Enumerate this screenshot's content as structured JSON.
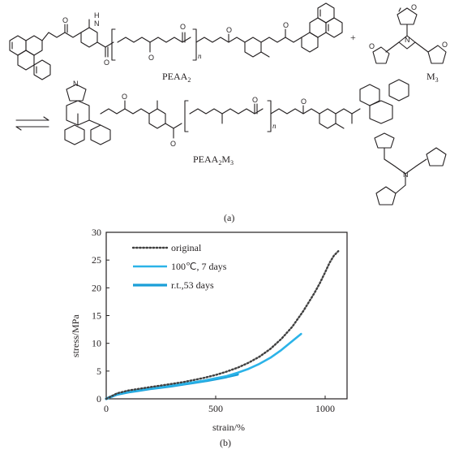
{
  "scheme": {
    "product_top": "PEAA",
    "product_top_sub": "2",
    "plus": "+",
    "reagent": "M",
    "reagent_sub": "3",
    "subscript_n": "n",
    "product_bottom": "PEAA",
    "product_bottom_sub1": "2",
    "product_bottom_mid": "M",
    "product_bottom_sub2": "3",
    "atoms": {
      "O": "O",
      "N": "N",
      "H": "H"
    },
    "panel_label": "(a)"
  },
  "chart_data": {
    "type": "line",
    "xlabel": "strain/%",
    "ylabel": "stress/MPa",
    "xlim": [
      0,
      1100
    ],
    "ylim": [
      0,
      30
    ],
    "x_ticks": [
      0,
      500,
      1000
    ],
    "y_ticks": [
      0,
      5,
      10,
      15,
      20,
      25,
      30
    ],
    "grid": false,
    "legend_position": "top-left",
    "series": [
      {
        "name": "original",
        "style": "dotted",
        "color": "#404040",
        "x": [
          0,
          20,
          50,
          100,
          150,
          200,
          250,
          300,
          350,
          400,
          450,
          500,
          550,
          600,
          650,
          700,
          750,
          800,
          850,
          900,
          950,
          975,
          1000,
          1020,
          1040,
          1060
        ],
        "y": [
          0,
          0.4,
          1.0,
          1.5,
          1.8,
          2.1,
          2.4,
          2.7,
          3.0,
          3.4,
          3.8,
          4.3,
          4.9,
          5.6,
          6.5,
          7.6,
          9.0,
          10.8,
          13.0,
          15.8,
          19.0,
          20.8,
          22.8,
          24.5,
          25.8,
          26.6
        ]
      },
      {
        "name": "100℃, 7 days",
        "style": "solid",
        "color": "#2bb3e8",
        "x": [
          0,
          20,
          50,
          100,
          150,
          200,
          250,
          300,
          350,
          400,
          450,
          500,
          550,
          600,
          650,
          700,
          750,
          800,
          850,
          890
        ],
        "y": [
          0,
          0.4,
          0.9,
          1.3,
          1.6,
          1.9,
          2.1,
          2.4,
          2.7,
          3.0,
          3.3,
          3.7,
          4.1,
          4.7,
          5.4,
          6.3,
          7.4,
          8.8,
          10.4,
          11.7
        ]
      },
      {
        "name": "r.t., 53 days",
        "style": "solid",
        "color": "#1a9fd8",
        "x": [
          0,
          20,
          50,
          100,
          150,
          200,
          250,
          300,
          350,
          400,
          450,
          500,
          550,
          600
        ],
        "y": [
          0,
          0.35,
          0.8,
          1.2,
          1.5,
          1.8,
          2.05,
          2.3,
          2.6,
          2.9,
          3.2,
          3.55,
          3.95,
          4.4
        ]
      }
    ],
    "legend": [
      "original",
      "100℃, 7 days",
      "r.t., 53 days"
    ],
    "legend_display": [
      "original",
      "100℃, 7 days",
      "r.t.,53 days"
    ],
    "panel_label": "(b)"
  }
}
